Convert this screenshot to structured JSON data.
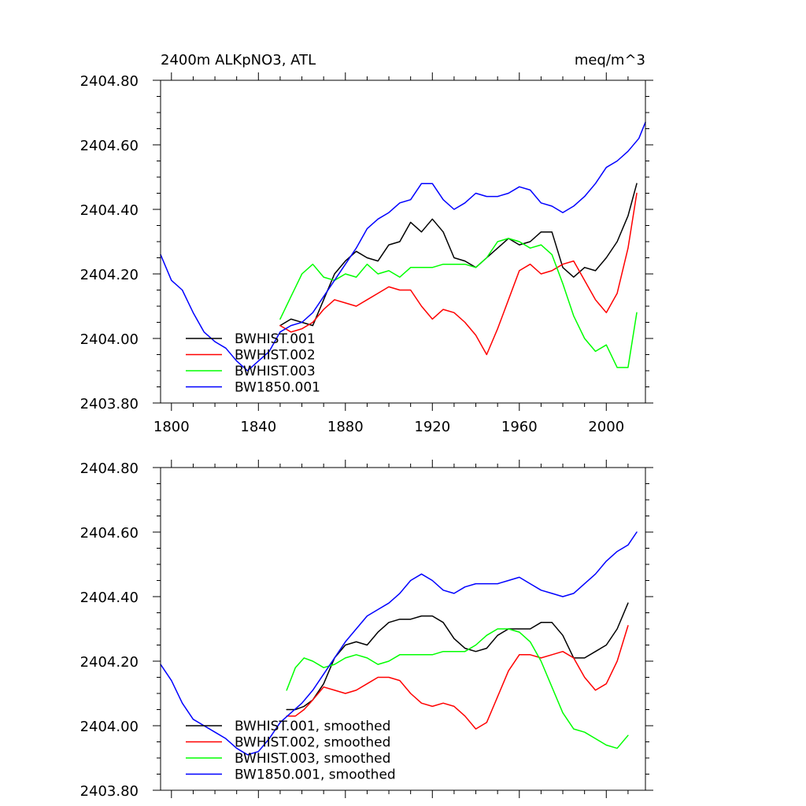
{
  "chart_data": [
    {
      "type": "line",
      "title": "2400m ALKpNO3, ATL",
      "units": "meq/m^3",
      "xlim": [
        1795,
        2018
      ],
      "ylim": [
        2403.8,
        2404.8
      ],
      "xticks": [
        1800,
        1840,
        1880,
        1920,
        1960,
        2000
      ],
      "yticks": [
        2403.8,
        2404.0,
        2404.2,
        2404.4,
        2404.6,
        2404.8
      ],
      "ytick_labels": [
        "2403.80",
        "2404.00",
        "2404.20",
        "2404.40",
        "2404.60",
        "2404.80"
      ],
      "xtick_labels": [
        "1800",
        "1840",
        "1880",
        "1920",
        "1960",
        "2000"
      ],
      "show_xtick_labels": true,
      "legend_position": "bottom-left",
      "series": [
        {
          "name": "BWHIST.001",
          "color": "#000000",
          "x": [
            1850,
            1855,
            1860,
            1865,
            1870,
            1875,
            1880,
            1885,
            1890,
            1895,
            1900,
            1905,
            1910,
            1915,
            1920,
            1925,
            1930,
            1935,
            1940,
            1945,
            1950,
            1955,
            1960,
            1965,
            1970,
            1975,
            1980,
            1985,
            1990,
            1995,
            2000,
            2005,
            2010,
            2014
          ],
          "y": [
            2404.04,
            2404.06,
            2404.05,
            2404.04,
            2404.12,
            2404.2,
            2404.24,
            2404.27,
            2404.25,
            2404.24,
            2404.29,
            2404.3,
            2404.36,
            2404.33,
            2404.37,
            2404.33,
            2404.25,
            2404.24,
            2404.22,
            2404.25,
            2404.28,
            2404.31,
            2404.29,
            2404.3,
            2404.33,
            2404.33,
            2404.22,
            2404.19,
            2404.22,
            2404.21,
            2404.25,
            2404.3,
            2404.38,
            2404.48
          ]
        },
        {
          "name": "BWHIST.002",
          "color": "#ff0000",
          "x": [
            1850,
            1855,
            1860,
            1865,
            1870,
            1875,
            1880,
            1885,
            1890,
            1895,
            1900,
            1905,
            1910,
            1915,
            1920,
            1925,
            1930,
            1935,
            1940,
            1945,
            1950,
            1955,
            1960,
            1965,
            1970,
            1975,
            1980,
            1985,
            1990,
            1995,
            2000,
            2005,
            2010,
            2014
          ],
          "y": [
            2404.04,
            2404.02,
            2404.03,
            2404.05,
            2404.09,
            2404.12,
            2404.11,
            2404.1,
            2404.12,
            2404.14,
            2404.16,
            2404.15,
            2404.15,
            2404.1,
            2404.06,
            2404.09,
            2404.08,
            2404.05,
            2404.01,
            2403.95,
            2404.03,
            2404.12,
            2404.21,
            2404.23,
            2404.2,
            2404.21,
            2404.23,
            2404.24,
            2404.18,
            2404.12,
            2404.08,
            2404.14,
            2404.28,
            2404.45
          ]
        },
        {
          "name": "BWHIST.003",
          "color": "#00ff00",
          "x": [
            1850,
            1855,
            1860,
            1865,
            1870,
            1875,
            1880,
            1885,
            1890,
            1895,
            1900,
            1905,
            1910,
            1915,
            1920,
            1925,
            1930,
            1935,
            1940,
            1945,
            1950,
            1955,
            1960,
            1965,
            1970,
            1975,
            1980,
            1985,
            1990,
            1995,
            2000,
            2005,
            2010,
            2014
          ],
          "y": [
            2404.06,
            2404.13,
            2404.2,
            2404.23,
            2404.19,
            2404.18,
            2404.2,
            2404.19,
            2404.23,
            2404.2,
            2404.21,
            2404.19,
            2404.22,
            2404.22,
            2404.22,
            2404.23,
            2404.23,
            2404.23,
            2404.22,
            2404.25,
            2404.3,
            2404.31,
            2404.3,
            2404.28,
            2404.29,
            2404.26,
            2404.17,
            2404.07,
            2404.0,
            2403.96,
            2403.98,
            2403.91,
            2403.91,
            2404.08
          ]
        },
        {
          "name": "BW1850.001",
          "color": "#0000ff",
          "x": [
            1795,
            1800,
            1805,
            1810,
            1815,
            1820,
            1825,
            1830,
            1835,
            1840,
            1845,
            1850,
            1855,
            1860,
            1865,
            1870,
            1875,
            1880,
            1885,
            1890,
            1895,
            1900,
            1905,
            1910,
            1915,
            1920,
            1925,
            1930,
            1935,
            1940,
            1945,
            1950,
            1955,
            1960,
            1965,
            1970,
            1975,
            1980,
            1985,
            1990,
            1995,
            2000,
            2005,
            2010,
            2015,
            2018
          ],
          "y": [
            2404.26,
            2404.18,
            2404.15,
            2404.08,
            2404.02,
            2403.99,
            2403.97,
            2403.93,
            2403.9,
            2403.93,
            2403.96,
            2404.02,
            2404.04,
            2404.05,
            2404.08,
            2404.13,
            2404.18,
            2404.23,
            2404.28,
            2404.34,
            2404.37,
            2404.39,
            2404.42,
            2404.43,
            2404.48,
            2404.48,
            2404.43,
            2404.4,
            2404.42,
            2404.45,
            2404.44,
            2404.44,
            2404.45,
            2404.47,
            2404.46,
            2404.42,
            2404.41,
            2404.39,
            2404.41,
            2404.44,
            2404.48,
            2404.53,
            2404.55,
            2404.58,
            2404.62,
            2404.67
          ]
        }
      ]
    },
    {
      "type": "line",
      "title": "",
      "units": "",
      "xlim": [
        1795,
        2018
      ],
      "ylim": [
        2403.8,
        2404.8
      ],
      "xticks": [
        1800,
        1840,
        1880,
        1920,
        1960,
        2000
      ],
      "yticks": [
        2403.8,
        2404.0,
        2404.2,
        2404.4,
        2404.6,
        2404.8
      ],
      "ytick_labels": [
        "2403.80",
        "2404.00",
        "2404.20",
        "2404.40",
        "2404.60",
        "2404.80"
      ],
      "xtick_labels": [],
      "show_xtick_labels": false,
      "legend_position": "bottom-left",
      "series": [
        {
          "name": "BWHIST.001, smoothed",
          "color": "#000000",
          "x": [
            1853,
            1857,
            1861,
            1865,
            1870,
            1875,
            1880,
            1885,
            1890,
            1895,
            1900,
            1905,
            1910,
            1915,
            1920,
            1925,
            1930,
            1935,
            1940,
            1945,
            1950,
            1955,
            1960,
            1965,
            1970,
            1975,
            1980,
            1985,
            1990,
            1995,
            2000,
            2005,
            2010
          ],
          "y": [
            2404.05,
            2404.05,
            2404.06,
            2404.08,
            2404.13,
            2404.21,
            2404.25,
            2404.26,
            2404.25,
            2404.29,
            2404.32,
            2404.33,
            2404.33,
            2404.34,
            2404.34,
            2404.32,
            2404.27,
            2404.24,
            2404.23,
            2404.24,
            2404.28,
            2404.3,
            2404.3,
            2404.3,
            2404.32,
            2404.32,
            2404.28,
            2404.21,
            2404.21,
            2404.23,
            2404.25,
            2404.3,
            2404.38
          ]
        },
        {
          "name": "BWHIST.002, smoothed",
          "color": "#ff0000",
          "x": [
            1853,
            1857,
            1861,
            1865,
            1870,
            1875,
            1880,
            1885,
            1890,
            1895,
            1900,
            1905,
            1910,
            1915,
            1920,
            1925,
            1930,
            1935,
            1940,
            1945,
            1950,
            1955,
            1960,
            1965,
            1970,
            1975,
            1980,
            1985,
            1990,
            1995,
            2000,
            2005,
            2010
          ],
          "y": [
            2404.03,
            2404.03,
            2404.05,
            2404.08,
            2404.12,
            2404.11,
            2404.1,
            2404.11,
            2404.13,
            2404.15,
            2404.15,
            2404.14,
            2404.1,
            2404.07,
            2404.06,
            2404.07,
            2404.06,
            2404.03,
            2403.99,
            2404.01,
            2404.09,
            2404.17,
            2404.22,
            2404.22,
            2404.21,
            2404.22,
            2404.23,
            2404.21,
            2404.15,
            2404.11,
            2404.13,
            2404.2,
            2404.31
          ]
        },
        {
          "name": "BWHIST.003, smoothed",
          "color": "#00ff00",
          "x": [
            1853,
            1857,
            1861,
            1865,
            1870,
            1875,
            1880,
            1885,
            1890,
            1895,
            1900,
            1905,
            1910,
            1915,
            1920,
            1925,
            1930,
            1935,
            1940,
            1945,
            1950,
            1955,
            1960,
            1965,
            1970,
            1975,
            1980,
            1985,
            1990,
            1995,
            2000,
            2005,
            2010
          ],
          "y": [
            2404.11,
            2404.18,
            2404.21,
            2404.2,
            2404.18,
            2404.19,
            2404.21,
            2404.22,
            2404.21,
            2404.19,
            2404.2,
            2404.22,
            2404.22,
            2404.22,
            2404.22,
            2404.23,
            2404.23,
            2404.23,
            2404.25,
            2404.28,
            2404.3,
            2404.3,
            2404.29,
            2404.26,
            2404.2,
            2404.12,
            2404.04,
            2403.99,
            2403.98,
            2403.96,
            2403.94,
            2403.93,
            2403.97
          ]
        },
        {
          "name": "BW1850.001, smoothed",
          "color": "#0000ff",
          "x": [
            1795,
            1800,
            1805,
            1810,
            1815,
            1820,
            1825,
            1830,
            1835,
            1840,
            1845,
            1850,
            1855,
            1860,
            1865,
            1870,
            1875,
            1880,
            1885,
            1890,
            1895,
            1900,
            1905,
            1910,
            1915,
            1920,
            1925,
            1930,
            1935,
            1940,
            1945,
            1950,
            1955,
            1960,
            1965,
            1970,
            1975,
            1980,
            1985,
            1990,
            1995,
            2000,
            2005,
            2010,
            2014
          ],
          "y": [
            2404.19,
            2404.14,
            2404.07,
            2404.02,
            2404.0,
            2403.98,
            2403.96,
            2403.93,
            2403.91,
            2403.92,
            2403.96,
            2404.01,
            2404.04,
            2404.07,
            2404.11,
            2404.16,
            2404.21,
            2404.26,
            2404.3,
            2404.34,
            2404.36,
            2404.38,
            2404.41,
            2404.45,
            2404.47,
            2404.45,
            2404.42,
            2404.41,
            2404.43,
            2404.44,
            2404.44,
            2404.44,
            2404.45,
            2404.46,
            2404.44,
            2404.42,
            2404.41,
            2404.4,
            2404.41,
            2404.44,
            2404.47,
            2404.51,
            2404.54,
            2404.56,
            2404.6
          ]
        }
      ]
    }
  ]
}
